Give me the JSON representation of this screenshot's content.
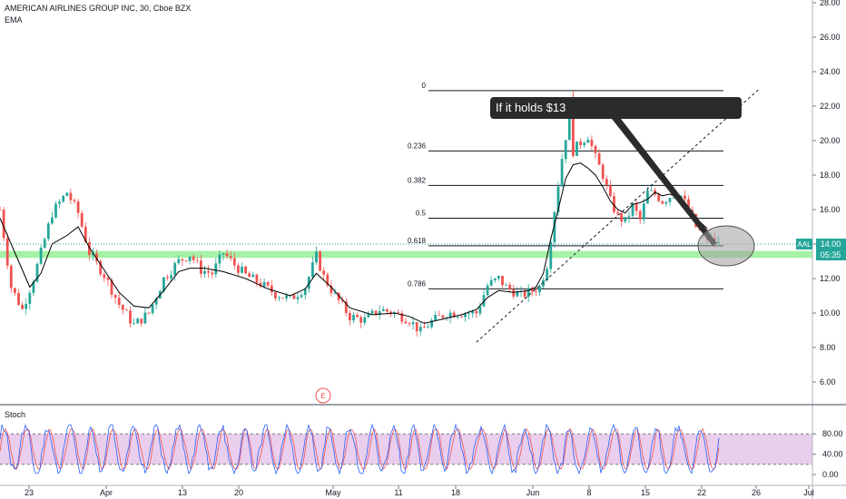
{
  "header": {
    "symbol_line": "AMERICAN AIRLINES GROUP INC, 30, Cboe BZX",
    "indicator": "EMA",
    "stoch_label": "Stoch",
    "event_marker": "E"
  },
  "annotation": {
    "text": "If it holds $13"
  },
  "price_badge": {
    "ticker": "AAL",
    "price": "14.00",
    "countdown": "05:35"
  },
  "colors": {
    "up": "#26a69a",
    "down": "#ef5350",
    "ema": "#000000",
    "support_zone": "#90ee90",
    "stoch_fill": "#e1bee7",
    "price_line": "#26a69a",
    "callout_bg": "#2b2b2b"
  },
  "chart_data": [
    {
      "type": "candlestick",
      "title": "AMERICAN AIRLINES GROUP INC, 30, Cboe BZX",
      "y_axis": {
        "ticks": [
          "28.00",
          "26.00",
          "24.00",
          "22.00",
          "20.00",
          "18.00",
          "16.00",
          "14.00",
          "12.00",
          "10.00",
          "8.00",
          "6.00"
        ],
        "ylim": [
          4.5,
          28.0
        ]
      },
      "x_axis": {
        "ticks": [
          "23",
          "Apr",
          "13",
          "20",
          "May",
          "11",
          "18",
          "Jun",
          "8",
          "15",
          "22",
          "26",
          "Jul"
        ]
      },
      "price_path": [
        [
          0,
          16.0
        ],
        [
          3,
          11.5
        ],
        [
          6,
          10.2
        ],
        [
          9,
          12.0
        ],
        [
          11,
          13.5
        ],
        [
          14,
          15.8
        ],
        [
          18,
          17.0
        ],
        [
          21,
          15.8
        ],
        [
          24,
          13.5
        ],
        [
          28,
          12.2
        ],
        [
          32,
          10.5
        ],
        [
          36,
          9.3
        ],
        [
          40,
          10.0
        ],
        [
          44,
          12.0
        ],
        [
          48,
          13.0
        ],
        [
          51,
          13.4
        ],
        [
          54,
          12.5
        ],
        [
          57,
          12.3
        ],
        [
          60,
          13.5
        ],
        [
          63,
          12.8
        ],
        [
          66,
          12.2
        ],
        [
          70,
          11.7
        ],
        [
          74,
          11.1
        ],
        [
          78,
          10.8
        ],
        [
          82,
          11.5
        ],
        [
          85,
          13.3
        ],
        [
          87,
          12.1
        ],
        [
          90,
          11.0
        ],
        [
          94,
          9.8
        ],
        [
          98,
          9.6
        ],
        [
          102,
          10.2
        ],
        [
          106,
          10.0
        ],
        [
          110,
          9.6
        ],
        [
          113,
          8.9
        ],
        [
          116,
          9.5
        ],
        [
          120,
          10.0
        ],
        [
          124,
          10.0
        ],
        [
          128,
          10.0
        ],
        [
          131,
          11.6
        ],
        [
          134,
          12.0
        ],
        [
          136,
          11.5
        ],
        [
          140,
          11.0
        ],
        [
          143,
          11.3
        ],
        [
          145,
          11.5
        ],
        [
          147,
          12.8
        ],
        [
          149,
          16.0
        ],
        [
          151,
          19.0
        ],
        [
          153,
          21.5
        ],
        [
          154,
          19.4
        ],
        [
          156,
          19.9
        ],
        [
          158,
          20.3
        ],
        [
          160,
          19.0
        ],
        [
          162,
          18.0
        ],
        [
          164,
          16.5
        ],
        [
          166,
          15.6
        ],
        [
          168,
          15.3
        ],
        [
          170,
          16.2
        ],
        [
          172,
          15.4
        ],
        [
          174,
          17.0
        ],
        [
          176,
          16.9
        ],
        [
          178,
          16.5
        ],
        [
          181,
          16.9
        ],
        [
          183,
          16.8
        ],
        [
          185,
          16.0
        ],
        [
          187,
          15.0
        ],
        [
          189,
          14.5
        ],
        [
          191,
          14.2
        ],
        [
          193,
          14.0
        ]
      ],
      "ema_path": [
        [
          0,
          15.5
        ],
        [
          4,
          13.5
        ],
        [
          8,
          11.5
        ],
        [
          11,
          12.3
        ],
        [
          14,
          14.0
        ],
        [
          18,
          14.5
        ],
        [
          21,
          15.0
        ],
        [
          24,
          13.8
        ],
        [
          28,
          12.5
        ],
        [
          32,
          11.2
        ],
        [
          36,
          10.4
        ],
        [
          40,
          10.3
        ],
        [
          44,
          11.3
        ],
        [
          48,
          12.4
        ],
        [
          51,
          12.6
        ],
        [
          55,
          12.6
        ],
        [
          60,
          12.4
        ],
        [
          66,
          12.0
        ],
        [
          72,
          11.4
        ],
        [
          78,
          11.0
        ],
        [
          82,
          11.4
        ],
        [
          85,
          12.3
        ],
        [
          89,
          11.5
        ],
        [
          94,
          10.3
        ],
        [
          100,
          9.9
        ],
        [
          106,
          10.0
        ],
        [
          110,
          9.8
        ],
        [
          114,
          9.4
        ],
        [
          118,
          9.6
        ],
        [
          124,
          9.9
        ],
        [
          128,
          10.2
        ],
        [
          131,
          10.9
        ],
        [
          134,
          11.3
        ],
        [
          138,
          11.2
        ],
        [
          142,
          11.3
        ],
        [
          144,
          11.5
        ],
        [
          146,
          12.3
        ],
        [
          148,
          14.3
        ],
        [
          150,
          16.0
        ],
        [
          152,
          17.8
        ],
        [
          154,
          18.6
        ],
        [
          156,
          18.7
        ],
        [
          158,
          18.4
        ],
        [
          160,
          18.0
        ],
        [
          162,
          17.3
        ],
        [
          164,
          16.5
        ],
        [
          166,
          16.0
        ],
        [
          168,
          15.8
        ],
        [
          170,
          16.3
        ],
        [
          172,
          16.4
        ],
        [
          174,
          16.6
        ],
        [
          176,
          17.0
        ],
        [
          178,
          16.8
        ],
        [
          180,
          16.9
        ],
        [
          183,
          16.6
        ],
        [
          186,
          15.8
        ],
        [
          188,
          15.3
        ],
        [
          190,
          14.9
        ]
      ],
      "fibonacci": [
        {
          "level": "0",
          "price": 22.9
        },
        {
          "level": "0.236",
          "price": 19.4
        },
        {
          "level": "0.382",
          "price": 17.4
        },
        {
          "level": "0.5",
          "price": 15.5
        },
        {
          "level": "0.618",
          "price": 13.9
        },
        {
          "level": "0.786",
          "price": 11.4
        }
      ],
      "support_zone": [
        13.2,
        13.6
      ],
      "current_price": 14.0,
      "trendline": [
        [
          128,
          8.3
        ],
        [
          204,
          23.0
        ]
      ]
    },
    {
      "type": "line",
      "name": "Stoch",
      "y_axis": {
        "ticks": [
          "80.00",
          "40.00",
          "0.00"
        ],
        "ylim": [
          -8,
          100
        ]
      },
      "band": [
        20,
        80
      ]
    }
  ]
}
